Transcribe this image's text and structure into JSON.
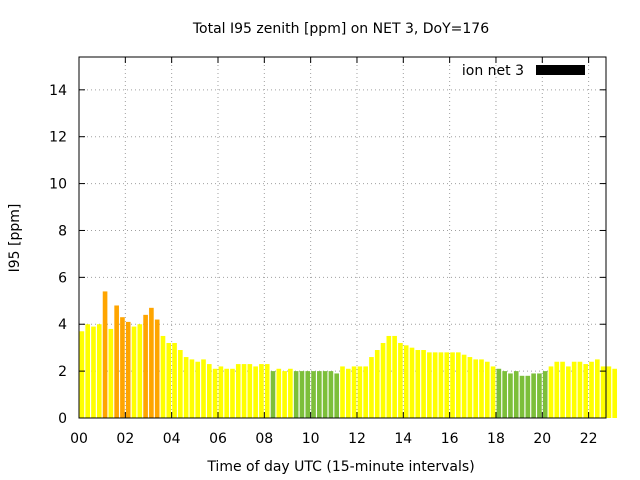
{
  "chart_data": {
    "type": "bar",
    "title": "Total I95 zenith [ppm] on NET 3, DoY=176",
    "xlabel": "Time of day UTC (15-minute intervals)",
    "ylabel": "I95 [ppm]",
    "xlim": [
      0,
      22.75
    ],
    "ylim": [
      0,
      15.4
    ],
    "x_ticks": [
      "00",
      "02",
      "04",
      "06",
      "08",
      "10",
      "12",
      "14",
      "16",
      "18",
      "20",
      "22"
    ],
    "x_tick_values": [
      0,
      2,
      4,
      6,
      8,
      10,
      12,
      14,
      16,
      18,
      20,
      22
    ],
    "y_ticks": [
      "0",
      "2",
      "4",
      "6",
      "8",
      "10",
      "12",
      "14"
    ],
    "y_tick_values": [
      0,
      2,
      4,
      6,
      8,
      10,
      12,
      14
    ],
    "grid": true,
    "legend": {
      "label": "ion net 3",
      "position": "top-right",
      "color": "#000000"
    },
    "bar_interval_hours": 0.25,
    "colors": {
      "yellow": "#ffff00",
      "orange": "#ffa500",
      "green": "#7cbf3a"
    },
    "series": [
      {
        "name": "ion net 3",
        "values": [
          3.7,
          4.0,
          3.9,
          4.0,
          5.4,
          3.8,
          4.8,
          4.3,
          4.1,
          3.9,
          4.0,
          4.4,
          4.7,
          4.2,
          3.5,
          3.2,
          3.2,
          2.9,
          2.6,
          2.5,
          2.4,
          2.5,
          2.3,
          2.1,
          2.2,
          2.1,
          2.1,
          2.3,
          2.3,
          2.3,
          2.2,
          2.3,
          2.3,
          2.0,
          2.1,
          2.0,
          2.1,
          2.0,
          2.0,
          2.0,
          2.0,
          2.0,
          2.0,
          2.0,
          1.9,
          2.2,
          2.1,
          2.2,
          2.2,
          2.2,
          2.6,
          2.9,
          3.2,
          3.5,
          3.5,
          3.2,
          3.1,
          3.0,
          2.9,
          2.9,
          2.8,
          2.8,
          2.8,
          2.8,
          2.8,
          2.8,
          2.7,
          2.6,
          2.5,
          2.5,
          2.4,
          2.2,
          2.1,
          2.0,
          1.9,
          2.0,
          1.8,
          1.8,
          1.9,
          1.9,
          2.0,
          2.2,
          2.4,
          2.4,
          2.2,
          2.4,
          2.4,
          2.3,
          2.4,
          2.5,
          2.2,
          2.2,
          2.1
        ],
        "colors": [
          "yellow",
          "yellow",
          "yellow",
          "yellow",
          "orange",
          "yellow",
          "orange",
          "orange",
          "orange",
          "yellow",
          "yellow",
          "orange",
          "orange",
          "orange",
          "yellow",
          "yellow",
          "yellow",
          "yellow",
          "yellow",
          "yellow",
          "yellow",
          "yellow",
          "yellow",
          "yellow",
          "yellow",
          "yellow",
          "yellow",
          "yellow",
          "yellow",
          "yellow",
          "yellow",
          "yellow",
          "yellow",
          "green",
          "yellow",
          "yellow",
          "yellow",
          "green",
          "green",
          "green",
          "green",
          "green",
          "green",
          "green",
          "green",
          "yellow",
          "yellow",
          "yellow",
          "yellow",
          "yellow",
          "yellow",
          "yellow",
          "yellow",
          "yellow",
          "yellow",
          "yellow",
          "yellow",
          "yellow",
          "yellow",
          "yellow",
          "yellow",
          "yellow",
          "yellow",
          "yellow",
          "yellow",
          "yellow",
          "yellow",
          "yellow",
          "yellow",
          "yellow",
          "yellow",
          "yellow",
          "green",
          "green",
          "green",
          "green",
          "green",
          "green",
          "green",
          "green",
          "green",
          "yellow",
          "yellow",
          "yellow",
          "yellow",
          "yellow",
          "yellow",
          "yellow",
          "yellow",
          "yellow",
          "yellow",
          "yellow",
          "yellow"
        ]
      }
    ]
  }
}
